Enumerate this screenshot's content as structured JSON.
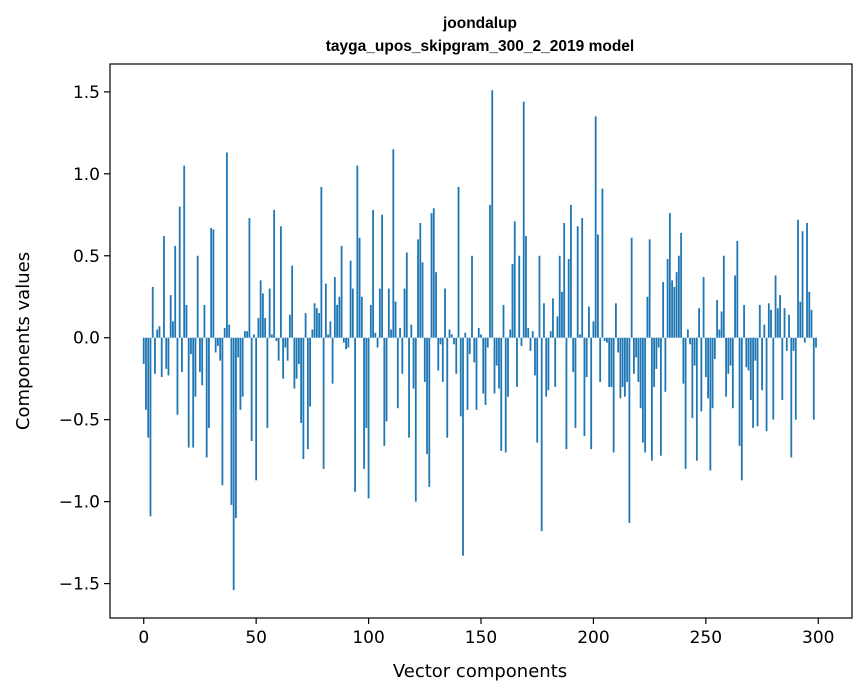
{
  "chart_data": {
    "type": "bar",
    "title": "joondalup",
    "subtitle": "tayga_upos_skipgram_300_2_2019 model",
    "xlabel": "Vector components",
    "ylabel": "Components values",
    "xlim": [
      -15,
      315
    ],
    "ylim": [
      -1.71,
      1.67
    ],
    "xticks": [
      0,
      50,
      100,
      150,
      200,
      250,
      300
    ],
    "xtick_labels": [
      "0",
      "50",
      "100",
      "150",
      "200",
      "250",
      "300"
    ],
    "yticks": [
      -1.5,
      -1.0,
      -0.5,
      0.0,
      0.5,
      1.0,
      1.5
    ],
    "ytick_labels": [
      "−1.5",
      "−1.0",
      "−0.5",
      "0.0",
      "0.5",
      "1.0",
      "1.5"
    ],
    "bar_color": "#1f77b4",
    "grid": false,
    "values": [
      -0.16,
      -0.44,
      -0.61,
      -1.09,
      0.31,
      -0.22,
      0.05,
      0.07,
      -0.24,
      0.62,
      -0.19,
      -0.23,
      0.26,
      0.1,
      0.56,
      -0.47,
      0.8,
      -0.21,
      1.05,
      0.2,
      -0.67,
      -0.1,
      -0.67,
      -0.36,
      0.5,
      -0.21,
      -0.29,
      0.2,
      -0.73,
      -0.55,
      0.67,
      0.66,
      -0.09,
      -0.05,
      -0.14,
      -0.9,
      0.06,
      1.13,
      0.08,
      -1.02,
      -1.54,
      -1.1,
      -0.12,
      -0.44,
      -0.36,
      0.04,
      0.04,
      0.73,
      -0.63,
      0.02,
      -0.87,
      0.12,
      0.35,
      0.27,
      0.12,
      -0.55,
      0.3,
      0.02,
      0.78,
      -0.02,
      -0.14,
      0.68,
      -0.25,
      -0.06,
      -0.14,
      0.14,
      0.44,
      -0.31,
      -0.25,
      -0.16,
      -0.52,
      -0.74,
      0.15,
      -0.68,
      -0.42,
      0.05,
      0.21,
      0.18,
      0.15,
      0.92,
      -0.8,
      0.33,
      0.02,
      0.1,
      -0.28,
      0.37,
      0.2,
      0.25,
      0.56,
      -0.03,
      -0.07,
      -0.06,
      0.47,
      0.3,
      -0.94,
      1.05,
      0.61,
      0.25,
      -0.8,
      -0.55,
      -0.98,
      0.2,
      0.78,
      0.03,
      -0.06,
      0.3,
      0.75,
      -0.66,
      -0.51,
      0.3,
      0.05,
      1.15,
      0.22,
      -0.43,
      0.06,
      -0.22,
      0.3,
      0.52,
      -0.61,
      0.08,
      -0.31,
      -1.0,
      0.6,
      0.7,
      0.46,
      -0.27,
      -0.71,
      -0.91,
      0.76,
      0.79,
      0.4,
      -0.2,
      -0.04,
      -0.27,
      0.3,
      -0.61,
      0.05,
      0.02,
      -0.04,
      -0.22,
      0.92,
      -0.48,
      -1.33,
      0.03,
      -0.44,
      -0.1,
      0.5,
      -0.15,
      -0.44,
      0.06,
      0.02,
      -0.34,
      -0.41,
      -0.06,
      0.81,
      1.51,
      -0.34,
      -0.17,
      -0.31,
      -0.69,
      0.2,
      -0.7,
      -0.36,
      0.05,
      0.45,
      0.71,
      -0.3,
      0.5,
      -0.05,
      1.44,
      0.62,
      0.06,
      -0.08,
      0.04,
      -0.23,
      -0.64,
      0.5,
      -1.18,
      0.21,
      -0.36,
      -0.32,
      0.04,
      0.24,
      -0.3,
      0.13,
      0.5,
      0.28,
      0.7,
      -0.68,
      0.48,
      0.81,
      -0.21,
      -0.55,
      0.68,
      0.02,
      0.73,
      -0.6,
      -0.24,
      0.19,
      -0.68,
      0.1,
      1.35,
      0.63,
      -0.27,
      0.91,
      -0.02,
      -0.03,
      -0.3,
      -0.3,
      -0.7,
      0.21,
      -0.09,
      -0.37,
      -0.3,
      -0.36,
      -0.27,
      -1.13,
      0.61,
      -0.22,
      -0.12,
      -0.27,
      -0.43,
      -0.64,
      -0.7,
      0.25,
      0.6,
      -0.75,
      -0.3,
      -0.19,
      -0.06,
      -0.72,
      0.34,
      -0.33,
      0.48,
      0.76,
      0.35,
      0.31,
      0.4,
      0.5,
      0.64,
      -0.28,
      -0.8,
      0.05,
      -0.04,
      -0.49,
      -0.17,
      -0.75,
      0.18,
      -0.45,
      0.37,
      -0.24,
      -0.37,
      -0.81,
      -0.43,
      -0.13,
      0.23,
      0.05,
      0.16,
      0.5,
      -0.36,
      -0.22,
      -0.17,
      -0.43,
      0.38,
      0.59,
      -0.66,
      -0.87,
      0.2,
      -0.18,
      -0.2,
      -0.38,
      -0.55,
      -0.14,
      -0.54,
      0.2,
      -0.32,
      0.08,
      -0.57,
      0.21,
      0.17,
      -0.5,
      0.38,
      0.18,
      0.26,
      -0.38,
      0.18,
      -0.08,
      0.14,
      -0.73,
      -0.08,
      -0.5,
      0.72,
      0.22,
      0.65,
      -0.03,
      0.7,
      0.28,
      0.17,
      -0.5,
      -0.06
    ]
  }
}
